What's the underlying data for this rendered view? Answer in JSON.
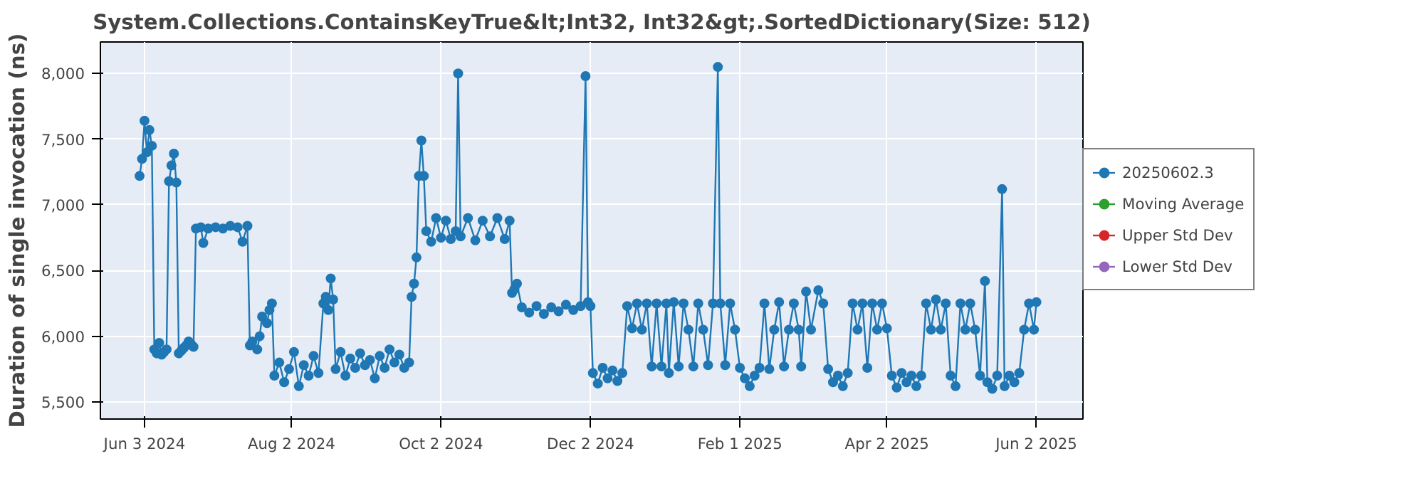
{
  "chart_data": {
    "type": "line",
    "title": "System.Collections.ContainsKeyTrue&lt;Int32, Int32&gt;.SortedDictionary(Size: 512)",
    "ylabel": "Duration of single invocation (ns)",
    "xlim": [
      "2024-05-16",
      "2025-06-21"
    ],
    "ylim": [
      5370,
      8240
    ],
    "xticks": [
      {
        "value": "2024-06-03",
        "label": "Jun 3 2024"
      },
      {
        "value": "2024-08-02",
        "label": "Aug 2 2024"
      },
      {
        "value": "2024-10-02",
        "label": "Oct 2 2024"
      },
      {
        "value": "2024-12-02",
        "label": "Dec 2 2024"
      },
      {
        "value": "2025-02-01",
        "label": "Feb 1 2025"
      },
      {
        "value": "2025-04-02",
        "label": "Apr 2 2025"
      },
      {
        "value": "2025-06-02",
        "label": "Jun 2 2025"
      }
    ],
    "yticks": [
      {
        "value": 5500,
        "label": "5,500"
      },
      {
        "value": 6000,
        "label": "6,000"
      },
      {
        "value": 6500,
        "label": "6,500"
      },
      {
        "value": 7000,
        "label": "7,000"
      },
      {
        "value": 7500,
        "label": "7,500"
      },
      {
        "value": 8000,
        "label": "8,000"
      }
    ],
    "grid": true,
    "legend": "right",
    "marker": "circle",
    "line_style": "solid",
    "series": [
      {
        "name": "20250602.3",
        "color": "#1f77b4",
        "x": [
          "2024-06-01",
          "2024-06-02",
          "2024-06-03",
          "2024-06-04",
          "2024-06-05",
          "2024-06-06",
          "2024-06-07",
          "2024-06-08",
          "2024-06-09",
          "2024-06-10",
          "2024-06-11",
          "2024-06-12",
          "2024-06-13",
          "2024-06-14",
          "2024-06-15",
          "2024-06-16",
          "2024-06-17",
          "2024-06-18",
          "2024-06-19",
          "2024-06-20",
          "2024-06-21",
          "2024-06-22",
          "2024-06-23",
          "2024-06-24",
          "2024-06-26",
          "2024-06-27",
          "2024-06-29",
          "2024-07-02",
          "2024-07-05",
          "2024-07-08",
          "2024-07-11",
          "2024-07-13",
          "2024-07-15",
          "2024-07-16",
          "2024-07-17",
          "2024-07-19",
          "2024-07-20",
          "2024-07-21",
          "2024-07-23",
          "2024-07-24",
          "2024-07-25",
          "2024-07-26",
          "2024-07-28",
          "2024-07-30",
          "2024-08-01",
          "2024-08-03",
          "2024-08-05",
          "2024-08-07",
          "2024-08-09",
          "2024-08-11",
          "2024-08-13",
          "2024-08-15",
          "2024-08-16",
          "2024-08-17",
          "2024-08-18",
          "2024-08-19",
          "2024-08-20",
          "2024-08-22",
          "2024-08-24",
          "2024-08-26",
          "2024-08-28",
          "2024-08-30",
          "2024-09-01",
          "2024-09-03",
          "2024-09-05",
          "2024-09-07",
          "2024-09-09",
          "2024-09-11",
          "2024-09-13",
          "2024-09-15",
          "2024-09-17",
          "2024-09-19",
          "2024-09-20",
          "2024-09-21",
          "2024-09-22",
          "2024-09-23",
          "2024-09-24",
          "2024-09-25",
          "2024-09-26",
          "2024-09-28",
          "2024-09-30",
          "2024-10-02",
          "2024-10-04",
          "2024-10-06",
          "2024-10-08",
          "2024-10-09",
          "2024-10-10",
          "2024-10-13",
          "2024-10-16",
          "2024-10-19",
          "2024-10-22",
          "2024-10-25",
          "2024-10-28",
          "2024-10-30",
          "2024-10-31",
          "2024-11-01",
          "2024-11-02",
          "2024-11-04",
          "2024-11-07",
          "2024-11-10",
          "2024-11-13",
          "2024-11-16",
          "2024-11-19",
          "2024-11-22",
          "2024-11-25",
          "2024-11-28",
          "2024-11-30",
          "2024-12-01",
          "2024-12-02",
          "2024-12-03",
          "2024-12-05",
          "2024-12-07",
          "2024-12-09",
          "2024-12-11",
          "2024-12-13",
          "2024-12-15",
          "2024-12-17",
          "2024-12-19",
          "2024-12-21",
          "2024-12-23",
          "2024-12-25",
          "2024-12-27",
          "2024-12-29",
          "2024-12-31",
          "2025-01-02",
          "2025-01-03",
          "2025-01-05",
          "2025-01-07",
          "2025-01-09",
          "2025-01-11",
          "2025-01-13",
          "2025-01-15",
          "2025-01-17",
          "2025-01-19",
          "2025-01-21",
          "2025-01-23",
          "2025-01-24",
          "2025-01-26",
          "2025-01-28",
          "2025-01-30",
          "2025-02-01",
          "2025-02-03",
          "2025-02-05",
          "2025-02-07",
          "2025-02-09",
          "2025-02-11",
          "2025-02-13",
          "2025-02-15",
          "2025-02-17",
          "2025-02-19",
          "2025-02-21",
          "2025-02-23",
          "2025-02-25",
          "2025-02-26",
          "2025-02-28",
          "2025-03-02",
          "2025-03-05",
          "2025-03-07",
          "2025-03-09",
          "2025-03-11",
          "2025-03-13",
          "2025-03-15",
          "2025-03-17",
          "2025-03-19",
          "2025-03-21",
          "2025-03-23",
          "2025-03-25",
          "2025-03-27",
          "2025-03-29",
          "2025-03-31",
          "2025-04-02",
          "2025-04-04",
          "2025-04-06",
          "2025-04-08",
          "2025-04-10",
          "2025-04-12",
          "2025-04-14",
          "2025-04-16",
          "2025-04-18",
          "2025-04-20",
          "2025-04-22",
          "2025-04-24",
          "2025-04-26",
          "2025-04-28",
          "2025-04-30",
          "2025-05-02",
          "2025-05-04",
          "2025-05-06",
          "2025-05-08",
          "2025-05-10",
          "2025-05-12",
          "2025-05-13",
          "2025-05-15",
          "2025-05-17",
          "2025-05-19",
          "2025-05-20",
          "2025-05-22",
          "2025-05-24",
          "2025-05-26",
          "2025-05-28",
          "2025-05-30",
          "2025-06-01",
          "2025-06-02"
        ],
        "values": [
          7220,
          7350,
          7640,
          7400,
          7570,
          7450,
          5900,
          5870,
          5950,
          5860,
          5880,
          5900,
          7180,
          7300,
          7390,
          7170,
          5870,
          5890,
          5910,
          5930,
          5960,
          5940,
          5920,
          6820,
          6830,
          6710,
          6820,
          6830,
          6820,
          6840,
          6830,
          6720,
          6840,
          5930,
          5960,
          5900,
          6000,
          6150,
          6100,
          6200,
          6250,
          5700,
          5800,
          5650,
          5750,
          5880,
          5620,
          5780,
          5700,
          5850,
          5720,
          6250,
          6300,
          6200,
          6440,
          6280,
          5750,
          5880,
          5700,
          5830,
          5760,
          5870,
          5780,
          5820,
          5680,
          5850,
          5760,
          5900,
          5800,
          5860,
          5760,
          5800,
          6300,
          6400,
          6600,
          7220,
          7490,
          7220,
          6800,
          6720,
          6900,
          6750,
          6880,
          6740,
          6800,
          8000,
          6760,
          6900,
          6730,
          6880,
          6760,
          6900,
          6740,
          6880,
          6330,
          6360,
          6400,
          6220,
          6180,
          6230,
          6170,
          6220,
          6190,
          6240,
          6200,
          6230,
          7980,
          6260,
          6230,
          5720,
          5640,
          5760,
          5680,
          5740,
          5660,
          5720,
          6230,
          6060,
          6250,
          6050,
          6250,
          5770,
          6250,
          5770,
          6250,
          5720,
          6260,
          5770,
          6250,
          6050,
          5770,
          6250,
          6050,
          5780,
          6250,
          8050,
          6250,
          5780,
          6250,
          6050,
          5760,
          5680,
          5620,
          5700,
          5760,
          6250,
          5750,
          6050,
          6260,
          5770,
          6050,
          6250,
          6050,
          5770,
          6340,
          6050,
          6350,
          6250,
          5750,
          5650,
          5700,
          5620,
          5720,
          6250,
          6050,
          6250,
          5760,
          6250,
          6050,
          6250,
          6060,
          5700,
          5610,
          5720,
          5650,
          5700,
          5620,
          5700,
          6250,
          6050,
          6280,
          6050,
          6250,
          5700,
          5620,
          6250,
          6050,
          6250,
          6050,
          5700,
          6420,
          5650,
          5600,
          5700,
          7120,
          5620,
          5700,
          5650,
          5720,
          6050,
          6250,
          6050,
          6260
        ]
      },
      {
        "name": "Moving Average",
        "color": "#2ca02c"
      },
      {
        "name": "Upper Std Dev",
        "color": "#d62728"
      },
      {
        "name": "Lower Std Dev",
        "color": "#9467bd"
      }
    ]
  }
}
